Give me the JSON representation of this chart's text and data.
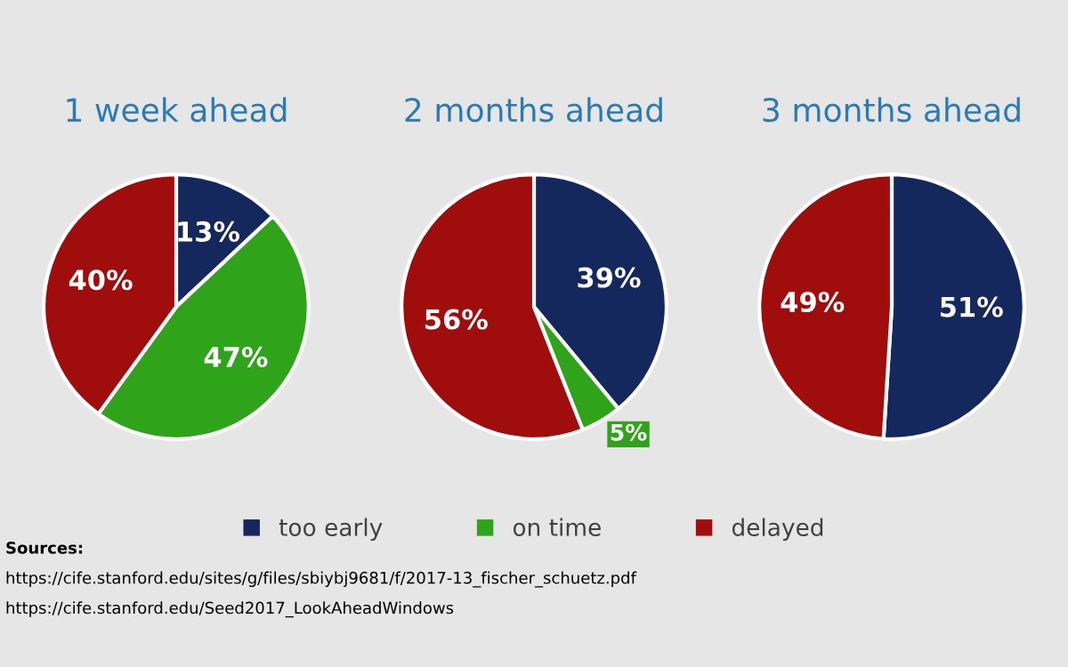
{
  "chart_data": [
    {
      "type": "pie",
      "title": "1 week ahead",
      "categories": [
        "too early",
        "on time",
        "delayed"
      ],
      "values": [
        13,
        47,
        40
      ],
      "colors": [
        "#15285e",
        "#2fa31a",
        "#a00d0d"
      ],
      "value_labels": [
        "13%",
        "47%",
        "40%"
      ],
      "legend": "bottom",
      "annotations": [
        "Sources:",
        "https://cife.stanford.edu/sites/g/files/sbiybj9681/f/2017-13_fischer_schuetz.pdf",
        "https://cife.stanford.edu/Seed2017_LookAheadWindows"
      ]
    },
    {
      "type": "pie",
      "title": "2 months ahead",
      "categories": [
        null,
        null,
        null
      ],
      "values": [
        39,
        5,
        56
      ],
      "colors": [
        "#15285e",
        "#2fa31a",
        "#a00d0d"
      ],
      "value_labels": [
        "39%",
        "5%",
        "56%"
      ]
    },
    {
      "type": "pie",
      "title": "3 months ahead",
      "categories": [
        null,
        null
      ],
      "values": [
        51,
        49
      ],
      "colors": [
        "#15285e",
        "#a00d0d"
      ],
      "value_labels": [
        "51%",
        "49%"
      ]
    }
  ]
}
